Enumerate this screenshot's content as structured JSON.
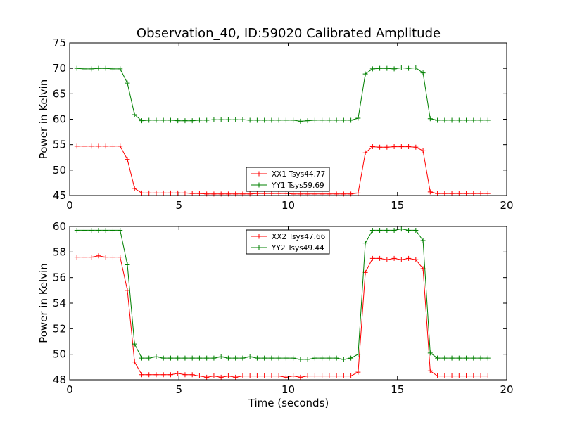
{
  "figure": {
    "title": "Observation_40, ID:59020 Calibrated Amplitude",
    "xlabel": "Time (seconds)"
  },
  "chart_data": [
    {
      "type": "line",
      "title": "Observation_40, ID:59020 Calibrated Amplitude",
      "xlabel": "",
      "ylabel": "Power in Kelvin",
      "xlim": [
        0,
        20
      ],
      "ylim": [
        45,
        75
      ],
      "xticks": [
        0,
        5,
        10,
        15,
        20
      ],
      "yticks": [
        45,
        50,
        55,
        60,
        65,
        70,
        75
      ],
      "grid": false,
      "legend_position": "lower-center",
      "x": [
        0.33,
        0.66,
        0.99,
        1.32,
        1.65,
        1.98,
        2.31,
        2.64,
        2.97,
        3.3,
        3.63,
        3.96,
        4.29,
        4.62,
        4.95,
        5.28,
        5.61,
        5.94,
        6.27,
        6.6,
        6.93,
        7.26,
        7.59,
        7.92,
        8.25,
        8.58,
        8.91,
        9.24,
        9.57,
        9.9,
        10.23,
        10.56,
        10.89,
        11.22,
        11.55,
        11.88,
        12.21,
        12.54,
        12.87,
        13.2,
        13.53,
        13.86,
        14.19,
        14.52,
        14.85,
        15.18,
        15.51,
        15.84,
        16.17,
        16.5,
        16.83,
        17.16,
        17.49,
        17.82,
        18.15,
        18.48,
        18.81,
        19.14
      ],
      "series": [
        {
          "name": "XX1 Tsys44.77",
          "color": "#ff0000",
          "values": [
            54.7,
            54.7,
            54.7,
            54.7,
            54.7,
            54.7,
            54.7,
            52.1,
            46.4,
            45.5,
            45.5,
            45.5,
            45.5,
            45.5,
            45.5,
            45.5,
            45.4,
            45.4,
            45.3,
            45.3,
            45.3,
            45.3,
            45.3,
            45.3,
            45.3,
            45.4,
            45.4,
            45.4,
            45.4,
            45.4,
            45.3,
            45.3,
            45.3,
            45.3,
            45.3,
            45.3,
            45.3,
            45.3,
            45.3,
            45.5,
            53.4,
            54.6,
            54.5,
            54.5,
            54.6,
            54.6,
            54.6,
            54.5,
            53.8,
            45.7,
            45.4,
            45.4,
            45.4,
            45.4,
            45.4,
            45.4,
            45.4,
            45.4
          ]
        },
        {
          "name": "YY1 Tsys59.69",
          "color": "#008000",
          "values": [
            70.0,
            69.9,
            69.9,
            70.0,
            70.0,
            69.9,
            69.9,
            67.1,
            60.9,
            59.7,
            59.8,
            59.8,
            59.8,
            59.8,
            59.7,
            59.7,
            59.7,
            59.8,
            59.8,
            59.9,
            59.9,
            59.9,
            59.9,
            59.9,
            59.8,
            59.8,
            59.8,
            59.8,
            59.8,
            59.8,
            59.8,
            59.6,
            59.7,
            59.8,
            59.8,
            59.8,
            59.8,
            59.8,
            59.8,
            60.2,
            68.9,
            69.9,
            70.0,
            70.0,
            69.9,
            70.1,
            70.0,
            70.1,
            69.1,
            60.1,
            59.8,
            59.8,
            59.8,
            59.8,
            59.8,
            59.8,
            59.8,
            59.8
          ]
        }
      ]
    },
    {
      "type": "line",
      "title": "",
      "xlabel": "Time (seconds)",
      "ylabel": "Power in Kelvin",
      "xlim": [
        0,
        20
      ],
      "ylim": [
        48,
        60
      ],
      "xticks": [
        0,
        5,
        10,
        15,
        20
      ],
      "yticks": [
        48,
        50,
        52,
        54,
        56,
        58,
        60
      ],
      "grid": false,
      "legend_position": "upper-center",
      "x": [
        0.33,
        0.66,
        0.99,
        1.32,
        1.65,
        1.98,
        2.31,
        2.64,
        2.97,
        3.3,
        3.63,
        3.96,
        4.29,
        4.62,
        4.95,
        5.28,
        5.61,
        5.94,
        6.27,
        6.6,
        6.93,
        7.26,
        7.59,
        7.92,
        8.25,
        8.58,
        8.91,
        9.24,
        9.57,
        9.9,
        10.23,
        10.56,
        10.89,
        11.22,
        11.55,
        11.88,
        12.21,
        12.54,
        12.87,
        13.2,
        13.53,
        13.86,
        14.19,
        14.52,
        14.85,
        15.18,
        15.51,
        15.84,
        16.17,
        16.5,
        16.83,
        17.16,
        17.49,
        17.82,
        18.15,
        18.48,
        18.81,
        19.14
      ],
      "series": [
        {
          "name": "XX2 Tsys47.66",
          "color": "#ff0000",
          "values": [
            57.6,
            57.6,
            57.6,
            57.7,
            57.6,
            57.6,
            57.6,
            55.0,
            49.4,
            48.4,
            48.4,
            48.4,
            48.4,
            48.4,
            48.5,
            48.4,
            48.4,
            48.3,
            48.2,
            48.3,
            48.2,
            48.3,
            48.2,
            48.3,
            48.3,
            48.3,
            48.3,
            48.3,
            48.3,
            48.2,
            48.3,
            48.2,
            48.3,
            48.3,
            48.3,
            48.3,
            48.3,
            48.3,
            48.3,
            48.6,
            56.4,
            57.5,
            57.5,
            57.4,
            57.5,
            57.4,
            57.5,
            57.4,
            56.7,
            48.7,
            48.3,
            48.3,
            48.3,
            48.3,
            48.3,
            48.3,
            48.3,
            48.3
          ]
        },
        {
          "name": "YY2 Tsys49.44",
          "color": "#008000",
          "values": [
            59.7,
            59.7,
            59.7,
            59.7,
            59.7,
            59.7,
            59.7,
            57.0,
            50.8,
            49.7,
            49.7,
            49.8,
            49.7,
            49.7,
            49.7,
            49.7,
            49.7,
            49.7,
            49.7,
            49.7,
            49.8,
            49.7,
            49.7,
            49.7,
            49.8,
            49.7,
            49.7,
            49.7,
            49.7,
            49.7,
            49.7,
            49.6,
            49.6,
            49.7,
            49.7,
            49.7,
            49.7,
            49.6,
            49.7,
            50.0,
            58.7,
            59.7,
            59.7,
            59.7,
            59.7,
            59.8,
            59.7,
            59.7,
            58.9,
            50.1,
            49.7,
            49.7,
            49.7,
            49.7,
            49.7,
            49.7,
            49.7,
            49.7
          ]
        }
      ]
    }
  ]
}
